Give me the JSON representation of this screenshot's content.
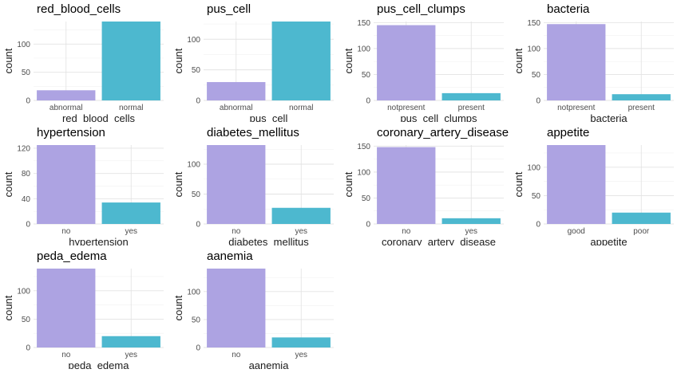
{
  "chart_data": [
    {
      "type": "bar",
      "title": "red_blood_cells",
      "xlabel": "red_blood_cells",
      "ylabel": "count",
      "categories": [
        "abnormal",
        "normal"
      ],
      "values": [
        18,
        140
      ],
      "ylim": [
        0,
        140
      ],
      "yticks": [
        0,
        50,
        100
      ],
      "colors": [
        "#ADA3E2",
        "#4DB8CF"
      ]
    },
    {
      "type": "bar",
      "title": "pus_cell",
      "xlabel": "pus_cell",
      "ylabel": "count",
      "categories": [
        "abnormal",
        "normal"
      ],
      "values": [
        30,
        129
      ],
      "ylim": [
        0,
        129
      ],
      "yticks": [
        0,
        50,
        100
      ],
      "colors": [
        "#ADA3E2",
        "#4DB8CF"
      ]
    },
    {
      "type": "bar",
      "title": "pus_cell_clumps",
      "xlabel": "pus_cell_clumps",
      "ylabel": "count",
      "categories": [
        "notpresent",
        "present"
      ],
      "values": [
        145,
        14
      ],
      "ylim": [
        0,
        152
      ],
      "yticks": [
        0,
        50,
        100,
        150
      ],
      "colors": [
        "#ADA3E2",
        "#4DB8CF"
      ]
    },
    {
      "type": "bar",
      "title": "bacteria",
      "xlabel": "bacteria",
      "ylabel": "count",
      "categories": [
        "notpresent",
        "present"
      ],
      "values": [
        147,
        12
      ],
      "ylim": [
        0,
        152
      ],
      "yticks": [
        0,
        50,
        100,
        150
      ],
      "colors": [
        "#ADA3E2",
        "#4DB8CF"
      ]
    },
    {
      "type": "bar",
      "title": "hypertension",
      "xlabel": "hypertension",
      "ylabel": "count",
      "categories": [
        "no",
        "yes"
      ],
      "values": [
        125,
        34
      ],
      "ylim": [
        0,
        125
      ],
      "yticks": [
        0,
        40,
        80,
        120
      ],
      "colors": [
        "#ADA3E2",
        "#4DB8CF"
      ]
    },
    {
      "type": "bar",
      "title": "diabetes_mellitus",
      "xlabel": "diabetes_mellitus",
      "ylabel": "count",
      "categories": [
        "no",
        "yes"
      ],
      "values": [
        132,
        27
      ],
      "ylim": [
        0,
        132
      ],
      "yticks": [
        0,
        50,
        100
      ],
      "colors": [
        "#ADA3E2",
        "#4DB8CF"
      ]
    },
    {
      "type": "bar",
      "title": "coronary_artery_disease",
      "xlabel": "coronary_artery_disease",
      "ylabel": "count",
      "categories": [
        "no",
        "yes"
      ],
      "values": [
        148,
        11
      ],
      "ylim": [
        0,
        152
      ],
      "yticks": [
        0,
        50,
        100,
        150
      ],
      "colors": [
        "#ADA3E2",
        "#4DB8CF"
      ]
    },
    {
      "type": "bar",
      "title": "appetite",
      "xlabel": "appetite",
      "ylabel": "count",
      "categories": [
        "good",
        "poor"
      ],
      "values": [
        139,
        20
      ],
      "ylim": [
        0,
        139
      ],
      "yticks": [
        0,
        50,
        100
      ],
      "colors": [
        "#ADA3E2",
        "#4DB8CF"
      ]
    },
    {
      "type": "bar",
      "title": "peda_edema",
      "xlabel": "peda_edema",
      "ylabel": "count",
      "categories": [
        "no",
        "yes"
      ],
      "values": [
        139,
        20
      ],
      "ylim": [
        0,
        139
      ],
      "yticks": [
        0,
        50,
        100
      ],
      "colors": [
        "#ADA3E2",
        "#4DB8CF"
      ]
    },
    {
      "type": "bar",
      "title": "aanemia",
      "xlabel": "aanemia",
      "ylabel": "count",
      "categories": [
        "no",
        "yes"
      ],
      "values": [
        141,
        18
      ],
      "ylim": [
        0,
        141
      ],
      "yticks": [
        0,
        50,
        100
      ],
      "colors": [
        "#ADA3E2",
        "#4DB8CF"
      ]
    }
  ]
}
